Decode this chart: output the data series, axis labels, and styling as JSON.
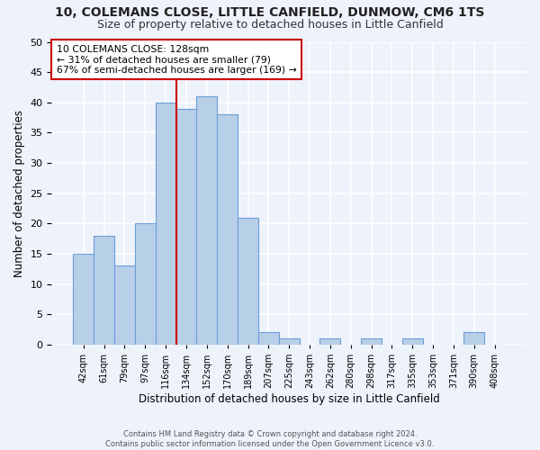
{
  "title1": "10, COLEMANS CLOSE, LITTLE CANFIELD, DUNMOW, CM6 1TS",
  "title2": "Size of property relative to detached houses in Little Canfield",
  "xlabel": "Distribution of detached houses by size in Little Canfield",
  "ylabel": "Number of detached properties",
  "bar_labels": [
    "42sqm",
    "61sqm",
    "79sqm",
    "97sqm",
    "116sqm",
    "134sqm",
    "152sqm",
    "170sqm",
    "189sqm",
    "207sqm",
    "225sqm",
    "243sqm",
    "262sqm",
    "280sqm",
    "298sqm",
    "317sqm",
    "335sqm",
    "353sqm",
    "371sqm",
    "390sqm",
    "408sqm"
  ],
  "bar_values": [
    15,
    18,
    13,
    20,
    40,
    39,
    41,
    38,
    21,
    2,
    1,
    0,
    1,
    0,
    1,
    0,
    1,
    0,
    0,
    2,
    0
  ],
  "bar_color": "#b8cfe8",
  "bar_edge_color": "#6a9fd8",
  "background_color": "#eef2fb",
  "grid_color": "#ffffff",
  "vline_x": 4.5,
  "vline_color": "#cc0000",
  "annotation_title": "10 COLEMANS CLOSE: 128sqm",
  "annotation_line1": "← 31% of detached houses are smaller (79)",
  "annotation_line2": "67% of semi-detached houses are larger (169) →",
  "annotation_box_color": "white",
  "annotation_box_edge": "#cc0000",
  "footer1": "Contains HM Land Registry data © Crown copyright and database right 2024.",
  "footer2": "Contains public sector information licensed under the Open Government Licence v3.0.",
  "ylim": [
    0,
    50
  ],
  "yticks": [
    0,
    5,
    10,
    15,
    20,
    25,
    30,
    35,
    40,
    45,
    50
  ]
}
